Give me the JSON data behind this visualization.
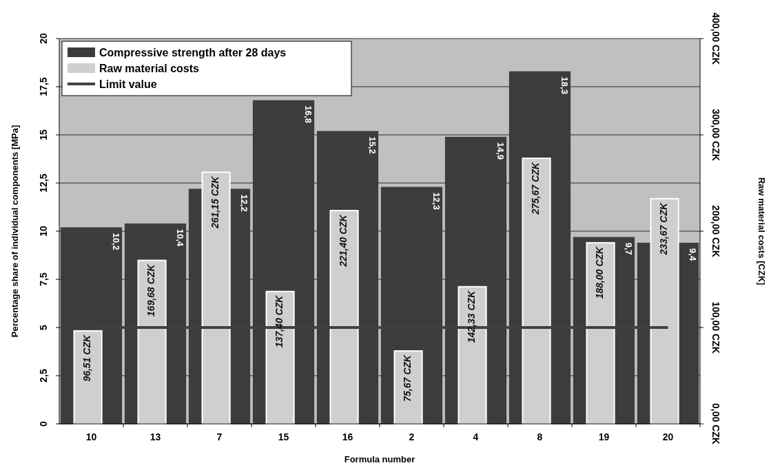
{
  "chart_data": {
    "type": "bar",
    "xlabel": "Formula number",
    "ylabel": "Percentage share of individual components [MPa]",
    "y2label": "Raw material costs  [CZK]",
    "categories": [
      "10",
      "13",
      "7",
      "15",
      "16",
      "2",
      "4",
      "8",
      "19",
      "20"
    ],
    "series": [
      {
        "name": "Compressive strength after 28 days",
        "color": "#3c3c3c",
        "values": [
          10.2,
          10.4,
          12.2,
          16.8,
          15.2,
          12.3,
          14.9,
          18.3,
          9.7,
          9.4
        ],
        "value_labels": [
          "10,2",
          "10,4",
          "12,2",
          "16,8",
          "15,2",
          "12,3",
          "14,9",
          "18,3",
          "9,7",
          "9,4"
        ]
      },
      {
        "name": "Raw material costs",
        "axis": "y2",
        "color": "#cfcfcf",
        "values": [
          96.51,
          169.68,
          261.15,
          137.4,
          221.4,
          75.67,
          142.33,
          275.67,
          188.0,
          233.67
        ],
        "value_labels": [
          "96,51 CZK",
          "169,68 CZK",
          "261,15 CZK",
          "137,40 CZK",
          "221,40 CZK",
          "75,67 CZK",
          "142,33 CZK",
          "275,67 CZK",
          "188,00 CZK",
          "233,67 CZK"
        ]
      },
      {
        "name": "Limit value",
        "type": "line",
        "color": "#404040",
        "values": [
          5,
          5,
          5,
          5,
          5,
          5,
          5,
          5,
          5,
          5
        ]
      }
    ],
    "ylim": [
      0,
      20
    ],
    "yticks": [
      0,
      {
        "value": 2.5,
        "label": "2,5"
      },
      5,
      {
        "value": 7.5,
        "label": "7,5"
      },
      10,
      {
        "value": 12.5,
        "label": "12,5"
      },
      15,
      {
        "value": 17.5,
        "label": "17,5"
      },
      20
    ],
    "y2lim": [
      0,
      400
    ],
    "y2ticks": [
      {
        "value": 0,
        "label": "0,00 CZK"
      },
      {
        "value": 100,
        "label": "100,00 CZK"
      },
      {
        "value": 200,
        "label": "200,00 CZK"
      },
      {
        "value": 300,
        "label": "300,00 CZK"
      },
      {
        "value": 400,
        "label": "400,00 CZK"
      }
    ],
    "grid": "y",
    "legend": "top left"
  }
}
